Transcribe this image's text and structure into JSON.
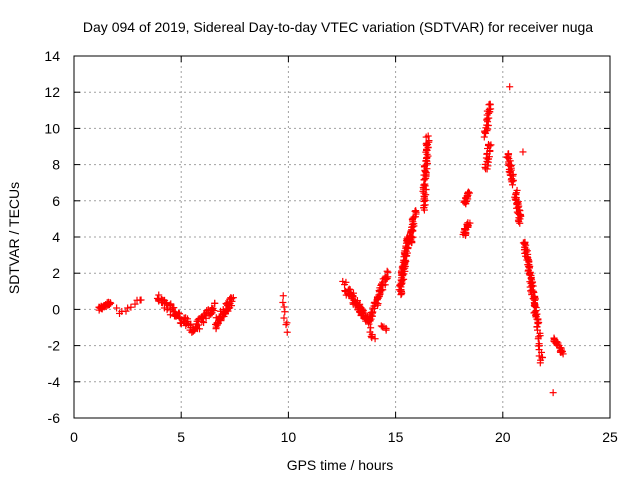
{
  "chart_data": {
    "type": "scatter",
    "title": "Day 094 of 2019, Sidereal Day-to-day VTEC variation (SDTVAR) for receiver nuga",
    "xlabel": "GPS time / hours",
    "ylabel": "SDTVAR / TECUs",
    "xlim": [
      0,
      25
    ],
    "ylim": [
      -6,
      14
    ],
    "xticks": [
      0,
      5,
      10,
      15,
      20,
      25
    ],
    "yticks": [
      -6,
      -4,
      -2,
      0,
      2,
      4,
      6,
      8,
      10,
      12,
      14
    ],
    "grid": true,
    "marker": "+",
    "color": "#ff0000",
    "segments": [
      {
        "x0": 1.15,
        "x1": 1.7,
        "y0": 0.0,
        "y1": 0.4,
        "n": 28,
        "s": 0.2
      },
      {
        "x0": 2.0,
        "x1": 3.2,
        "y0": -0.1,
        "y1": 0.5,
        "n": 10,
        "s": 0.4
      },
      {
        "x0": 3.9,
        "x1": 5.5,
        "y0": 0.6,
        "y1": -1.0,
        "n": 60,
        "s": 0.55
      },
      {
        "x0": 5.5,
        "x1": 6.6,
        "y0": -1.2,
        "y1": 0.2,
        "n": 40,
        "s": 0.5
      },
      {
        "x0": 6.6,
        "x1": 7.4,
        "y0": -0.9,
        "y1": 0.6,
        "n": 55,
        "s": 0.5
      },
      {
        "x0": 9.8,
        "x1": 9.9,
        "y0": 0.7,
        "y1": -1.2,
        "n": 8,
        "s": 0.2
      },
      {
        "x0": 12.6,
        "x1": 12.7,
        "y0": 1.6,
        "y1": 0.8,
        "n": 6,
        "s": 0.2
      },
      {
        "x0": 12.8,
        "x1": 13.8,
        "y0": 1.0,
        "y1": -0.8,
        "n": 70,
        "s": 0.45
      },
      {
        "x0": 13.8,
        "x1": 14.6,
        "y0": -0.5,
        "y1": 2.0,
        "n": 55,
        "s": 0.4
      },
      {
        "x0": 13.8,
        "x1": 14.0,
        "y0": -1.3,
        "y1": -1.6,
        "n": 5,
        "s": 0.1
      },
      {
        "x0": 14.3,
        "x1": 14.6,
        "y0": -0.9,
        "y1": -1.1,
        "n": 6,
        "s": 0.1
      },
      {
        "x0": 15.2,
        "x1": 15.6,
        "y0": 0.8,
        "y1": 4.1,
        "n": 80,
        "s": 0.3
      },
      {
        "x0": 15.7,
        "x1": 15.9,
        "y0": 3.6,
        "y1": 5.4,
        "n": 30,
        "s": 0.2
      },
      {
        "x0": 16.3,
        "x1": 16.5,
        "y0": 5.6,
        "y1": 9.5,
        "n": 60,
        "s": 0.25
      },
      {
        "x0": 18.2,
        "x1": 18.4,
        "y0": 4.1,
        "y1": 4.8,
        "n": 25,
        "s": 0.15
      },
      {
        "x0": 18.2,
        "x1": 18.4,
        "y0": 5.8,
        "y1": 6.5,
        "n": 18,
        "s": 0.15
      },
      {
        "x0": 19.2,
        "x1": 19.4,
        "y0": 7.7,
        "y1": 9.2,
        "n": 20,
        "s": 0.2
      },
      {
        "x0": 19.2,
        "x1": 19.4,
        "y0": 9.6,
        "y1": 11.4,
        "n": 25,
        "s": 0.2
      },
      {
        "x0": 20.2,
        "x1": 20.5,
        "y0": 8.6,
        "y1": 7.0,
        "n": 30,
        "s": 0.25
      },
      {
        "x0": 20.6,
        "x1": 20.8,
        "y0": 6.5,
        "y1": 4.8,
        "n": 30,
        "s": 0.2
      },
      {
        "x0": 21.0,
        "x1": 21.6,
        "y0": 3.8,
        "y1": -0.6,
        "n": 85,
        "s": 0.25
      },
      {
        "x0": 21.6,
        "x1": 21.8,
        "y0": -0.5,
        "y1": -3.0,
        "n": 20,
        "s": 0.2
      },
      {
        "x0": 22.4,
        "x1": 22.8,
        "y0": -1.6,
        "y1": -2.4,
        "n": 25,
        "s": 0.2
      },
      {
        "x0": 20.3,
        "x1": 20.3,
        "y0": 12.3,
        "y1": 12.3,
        "n": 1,
        "s": 0
      },
      {
        "x0": 20.9,
        "x1": 20.9,
        "y0": 8.7,
        "y1": 8.7,
        "n": 1,
        "s": 0
      },
      {
        "x0": 22.3,
        "x1": 22.3,
        "y0": -4.6,
        "y1": -4.6,
        "n": 1,
        "s": 0
      }
    ]
  }
}
